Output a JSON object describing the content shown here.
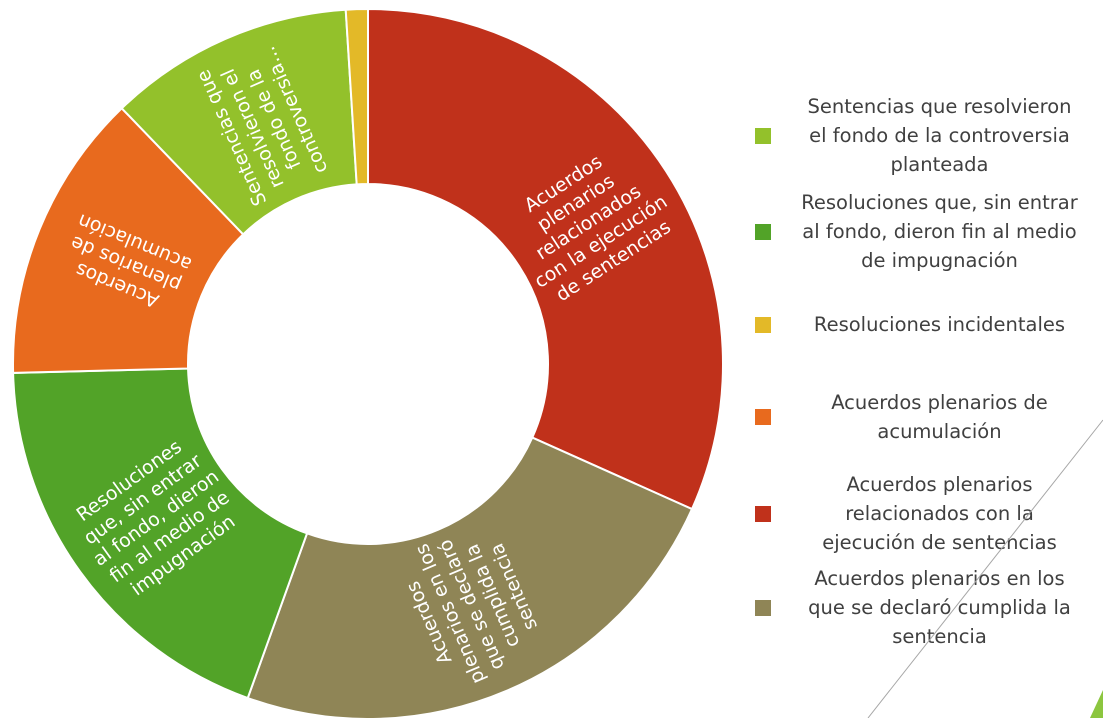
{
  "chart_data": {
    "type": "pie",
    "donut": true,
    "title": "",
    "start_angle_deg": 0,
    "direction": "clockwise",
    "slices": [
      {
        "name": "Acuerdos plenarios relacionados con la ejecución de sentencias",
        "value": 31.7,
        "color": "#C0311B",
        "label_lines": [
          "Acuerdos",
          "plenarios",
          "relacionados",
          "con la ejecución",
          "de sentencias"
        ]
      },
      {
        "name": "Acuerdos plenarios en los que se declaró cumplida la sentencia",
        "value": 23.8,
        "color": "#8F8556",
        "label_lines": [
          "Acuerdos",
          "plenarios en los",
          "que se declaró",
          "cumplida la",
          "sentencia"
        ]
      },
      {
        "name": "Resoluciones que, sin entrar al fondo, dieron fin al medio de impugnación",
        "value": 19.1,
        "color": "#52A328",
        "label_lines": [
          "Resoluciones",
          "que, sin entrar",
          "al fondo, dieron",
          "fin al medio de",
          "impugnación"
        ]
      },
      {
        "name": "Acuerdos plenarios de acumulación",
        "value": 13.2,
        "color": "#E86A1E",
        "label_lines": [
          "Acuerdos",
          "plenarios de",
          "acumulación"
        ]
      },
      {
        "name": "Sentencias que resolvieron el fondo de la controversia planteada",
        "value": 11.2,
        "color": "#93C12B",
        "label_lines": [
          "Sentencias que",
          "resolvieron el",
          "fondo de la",
          "controversia..."
        ]
      },
      {
        "name": "Resoluciones incidentales",
        "value": 1.0,
        "color": "#E3B928",
        "label_lines": []
      }
    ],
    "legend": {
      "placement": "right",
      "entries": [
        {
          "lines": [
            "Sentencias que resolvieron",
            "el fondo de la controversia",
            "planteada"
          ],
          "color": "#93C12B"
        },
        {
          "lines": [
            "Resoluciones que, sin entrar",
            "al fondo, dieron fin al medio",
            "de impugnación"
          ],
          "color": "#52A328"
        },
        {
          "lines": [
            "Resoluciones incidentales"
          ],
          "color": "#E3B928"
        },
        {
          "lines": [
            "Acuerdos plenarios de",
            "acumulación"
          ],
          "color": "#E86A1E"
        },
        {
          "lines": [
            "Acuerdos plenarios",
            "relacionados con la",
            "ejecución de sentencias"
          ],
          "color": "#C0311B"
        },
        {
          "lines": [
            "Acuerdos plenarios en los",
            "que se declaró cumplida la",
            "sentencia"
          ],
          "color": "#8F8556"
        }
      ]
    }
  },
  "decor": {
    "line_color": "#A6A6A6",
    "accent_color": "#8CC63F"
  }
}
